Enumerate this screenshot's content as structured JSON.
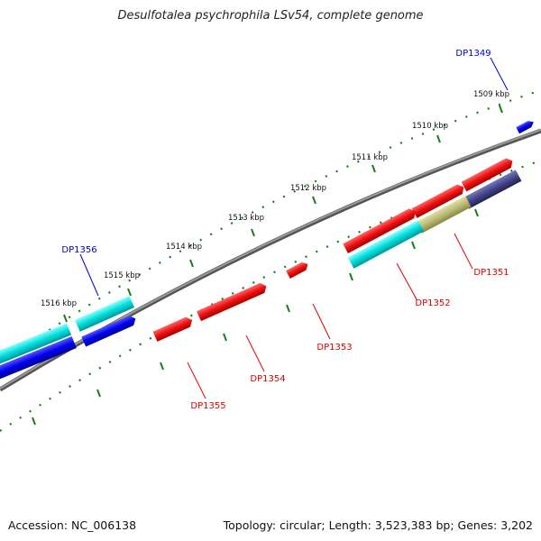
{
  "title": "Desulfotalea psychrophila LSv54, complete genome",
  "footer": {
    "accession": "Accession: NC_006138",
    "summary": "Topology: circular; Length: 3,523,383 bp; Genes: 3,202"
  },
  "ticks": [
    {
      "label": "1509 kbp"
    },
    {
      "label": "1510 kbp"
    },
    {
      "label": "1511 kbp"
    },
    {
      "label": "1512 kbp"
    },
    {
      "label": "1513 kbp"
    },
    {
      "label": "1514 kbp"
    },
    {
      "label": "1515 kbp"
    },
    {
      "label": "1516 kbp"
    }
  ],
  "gene_labels": [
    {
      "id": "DP1349",
      "color": "#0000cc"
    },
    {
      "id": "DP1356",
      "color": "#0000cc"
    },
    {
      "id": "DP1351",
      "color": "#dd0000"
    },
    {
      "id": "DP1352",
      "color": "#dd0000"
    },
    {
      "id": "DP1353",
      "color": "#dd0000"
    },
    {
      "id": "DP1354",
      "color": "#dd0000"
    },
    {
      "id": "DP1355",
      "color": "#dd0000"
    }
  ],
  "colors": {
    "backbone": "#707070",
    "tick": "#1a7a1a",
    "gene_red": "#ee1111",
    "gene_blue": "#0000ee",
    "gene_cyan": "#00cccc",
    "gene_olive": "#bbbb77",
    "gene_slate": "#444488"
  }
}
